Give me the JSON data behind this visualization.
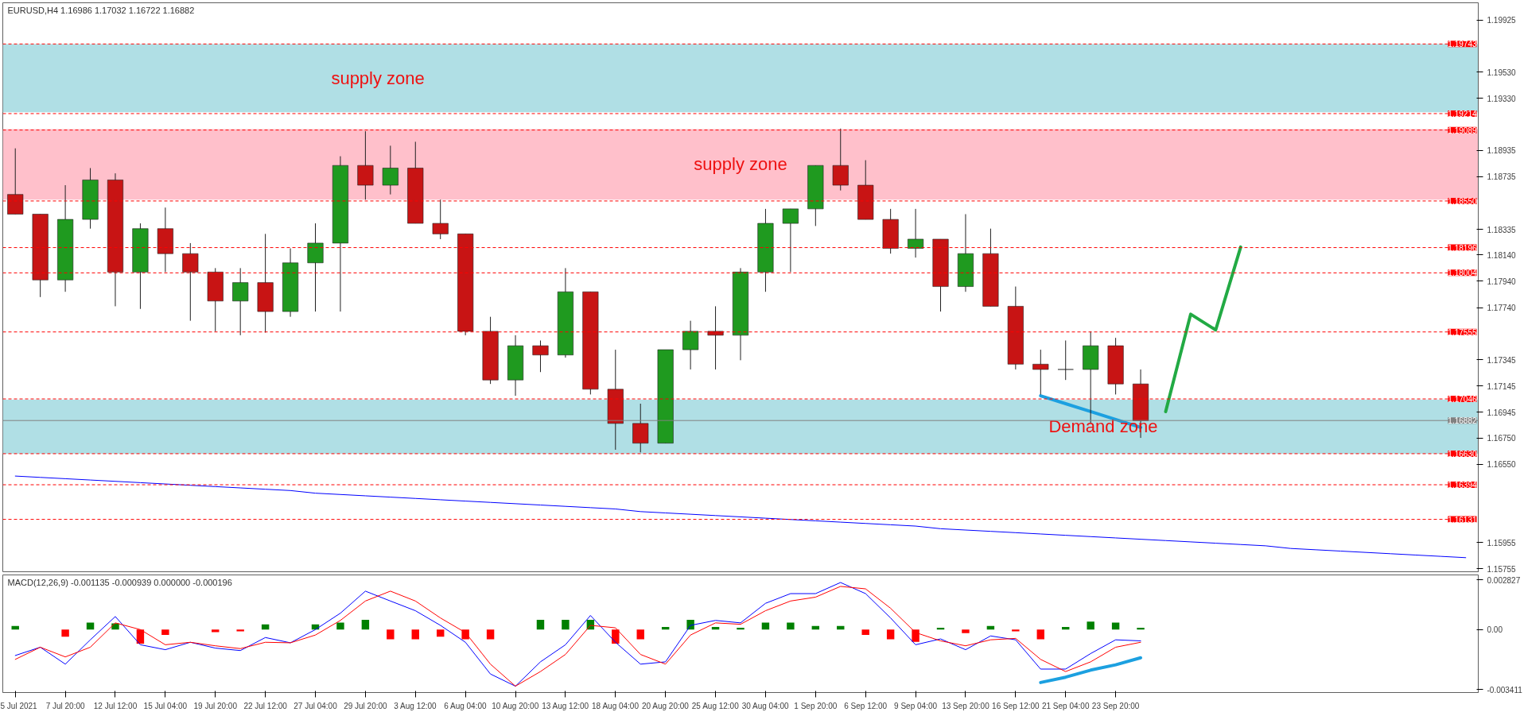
{
  "chart_data": [
    {
      "type": "candlestick",
      "title": "EURUSD,H4  1.16986 1.17032 1.16722 1.16882",
      "tick_labels": "y",
      "ylim": [
        1.15727,
        1.20056
      ],
      "yticks": [
        {
          "value": 1.19925,
          "label": "1.19925"
        },
        {
          "value": 1.1953,
          "label": "1.19530"
        },
        {
          "value": 1.1933,
          "label": "1.19330"
        },
        {
          "value": 1.18935,
          "label": "1.18935"
        },
        {
          "value": 1.18735,
          "label": "1.18735"
        },
        {
          "value": 1.18335,
          "label": "1.18335"
        },
        {
          "value": 1.1814,
          "label": "1.18140"
        },
        {
          "value": 1.1794,
          "label": "1.17940"
        },
        {
          "value": 1.1774,
          "label": "1.17740"
        },
        {
          "value": 1.17345,
          "label": "1.17345"
        },
        {
          "value": 1.17145,
          "label": "1.17145"
        },
        {
          "value": 1.16945,
          "label": "1.16945"
        },
        {
          "value": 1.1675,
          "label": "1.16750"
        },
        {
          "value": 1.1655,
          "label": "1.16550"
        },
        {
          "value": 1.15955,
          "label": "1.15955"
        },
        {
          "value": 1.15755,
          "label": "1.15755"
        }
      ],
      "categories": [
        null,
        null,
        null,
        null,
        null,
        null,
        null,
        null,
        null,
        null,
        null,
        null,
        null,
        null,
        null,
        null,
        null,
        null,
        null,
        null,
        null,
        null,
        null,
        null,
        null,
        null,
        null,
        null,
        null,
        null,
        null,
        null,
        null,
        null,
        null,
        null,
        null,
        null,
        null,
        null,
        null,
        null,
        null,
        null,
        null,
        null,
        null,
        null,
        null,
        null,
        null,
        null,
        null,
        null,
        null,
        null,
        null,
        null,
        null
      ],
      "ohlc": [
        [
          1.186,
          1.1895,
          1.1845,
          1.1845
        ],
        [
          1.1845,
          1.1845,
          1.1782,
          1.1795
        ],
        [
          1.1795,
          1.1867,
          1.1786,
          1.1841
        ],
        [
          1.1841,
          1.188,
          1.1834,
          1.1871
        ],
        [
          1.1871,
          1.1876,
          1.1775,
          1.1801
        ],
        [
          1.1801,
          1.1838,
          1.1773,
          1.1834
        ],
        [
          1.1834,
          1.185,
          1.1801,
          1.1815
        ],
        [
          1.1815,
          1.1823,
          1.1764,
          1.1801
        ],
        [
          1.1801,
          1.1804,
          1.1756,
          1.1779
        ],
        [
          1.1779,
          1.1804,
          1.1753,
          1.1793
        ],
        [
          1.1793,
          1.183,
          1.1755,
          1.1771
        ],
        [
          1.1771,
          1.1819,
          1.1767,
          1.1808
        ],
        [
          1.1808,
          1.1838,
          1.1771,
          1.1823
        ],
        [
          1.1823,
          1.1889,
          1.1771,
          1.1882
        ],
        [
          1.1882,
          1.1908,
          1.1856,
          1.1867
        ],
        [
          1.1867,
          1.1897,
          1.186,
          1.188
        ],
        [
          1.188,
          1.19,
          1.1838,
          1.1838
        ],
        [
          1.1838,
          1.1856,
          1.1826,
          1.183
        ],
        [
          1.183,
          1.183,
          1.1753,
          1.1756
        ],
        [
          1.1756,
          1.1767,
          1.1716,
          1.1719
        ],
        [
          1.1719,
          1.1753,
          1.1707,
          1.1745
        ],
        [
          1.1745,
          1.1749,
          1.1725,
          1.1738
        ],
        [
          1.1738,
          1.1804,
          1.1736,
          1.1786
        ],
        [
          1.1786,
          1.1786,
          1.1708,
          1.1712
        ],
        [
          1.1712,
          1.1742,
          1.1666,
          1.1686
        ],
        [
          1.1686,
          1.1701,
          1.1664,
          1.1671
        ],
        [
          1.1671,
          1.1742,
          1.1671,
          1.1742
        ],
        [
          1.1742,
          1.1764,
          1.1727,
          1.1756
        ],
        [
          1.1756,
          1.1775,
          1.1727,
          1.1753
        ],
        [
          1.1753,
          1.1804,
          1.1734,
          1.1801
        ],
        [
          1.1801,
          1.1849,
          1.1786,
          1.1838
        ],
        [
          1.1838,
          1.1849,
          1.1801,
          1.1849
        ],
        [
          1.1849,
          1.1882,
          1.1836,
          1.1882
        ],
        [
          1.1882,
          1.191,
          1.1863,
          1.1867
        ],
        [
          1.1867,
          1.1886,
          1.1841,
          1.1841
        ],
        [
          1.1841,
          1.1849,
          1.1815,
          1.1819
        ],
        [
          1.1819,
          1.1849,
          1.1812,
          1.1826
        ],
        [
          1.1826,
          1.1826,
          1.1771,
          1.179
        ],
        [
          1.179,
          1.1845,
          1.1786,
          1.1815
        ],
        [
          1.1815,
          1.1834,
          1.1775,
          1.1775
        ],
        [
          1.1775,
          1.179,
          1.1727,
          1.1731
        ],
        [
          1.1731,
          1.1742,
          1.1708,
          1.1727
        ],
        [
          1.1727,
          1.1749,
          1.1719,
          1.1727
        ],
        [
          1.1727,
          1.1756,
          1.1686,
          1.1745
        ],
        [
          1.1745,
          1.1751,
          1.1708,
          1.1716
        ],
        [
          1.1716,
          1.1727,
          1.1675,
          1.1688
        ],
        null,
        null,
        null,
        null,
        null,
        null,
        null,
        null,
        null,
        null,
        null,
        null,
        null
      ],
      "series": [
        {
          "type": "line",
          "color": "#22aa44",
          "values": [
            null,
            null,
            null,
            null,
            null,
            null,
            null,
            null,
            null,
            null,
            null,
            null,
            null,
            null,
            null,
            null,
            null,
            null,
            null,
            null,
            null,
            null,
            null,
            null,
            null,
            null,
            null,
            null,
            null,
            null,
            null,
            null,
            null,
            null,
            null,
            null,
            null,
            null,
            null,
            null,
            null,
            null,
            null,
            null,
            null,
            null,
            1.1695,
            1.1769,
            1.1757,
            1.182,
            null,
            null,
            null,
            null,
            null,
            null,
            null,
            null,
            null
          ]
        },
        {
          "type": "line",
          "color": "#0000ff",
          "values": [
            1.1646,
            1.1645,
            1.1644,
            1.1643,
            1.1642,
            1.1641,
            1.164,
            1.1639,
            1.1638,
            1.1637,
            1.1636,
            1.1635,
            1.1633,
            1.1632,
            1.1631,
            1.163,
            1.1629,
            1.1628,
            1.1627,
            1.1626,
            1.1625,
            1.1624,
            1.1623,
            1.1622,
            1.1621,
            1.1619,
            1.1618,
            1.1617,
            1.1616,
            1.1615,
            1.1614,
            1.1613,
            1.1612,
            1.1611,
            1.161,
            1.1609,
            1.1608,
            1.1606,
            1.1605,
            1.1604,
            1.1603,
            1.1602,
            1.1601,
            1.16,
            1.1599,
            1.1598,
            1.1597,
            1.1596,
            1.1595,
            1.1594,
            1.1593,
            1.1591,
            1.159,
            1.1589,
            1.1588,
            1.1587,
            1.1586,
            1.1585,
            1.1584
          ]
        },
        {
          "type": "line",
          "color": "#1ca0e0",
          "values": [
            null,
            null,
            null,
            null,
            null,
            null,
            null,
            null,
            null,
            null,
            null,
            null,
            null,
            null,
            null,
            null,
            null,
            null,
            null,
            null,
            null,
            null,
            null,
            null,
            null,
            null,
            null,
            null,
            null,
            null,
            null,
            null,
            null,
            null,
            null,
            null,
            null,
            null,
            null,
            null,
            null,
            1.1707,
            1.1701,
            1.1695,
            1.1689,
            1.1683,
            null,
            null,
            null,
            null,
            null,
            null,
            null,
            null,
            null,
            null,
            null,
            null,
            null
          ]
        }
      ],
      "ref_lines": [
        {
          "axis": "y",
          "value": 1.19743,
          "label": "1.19743",
          "color": "#ff0000",
          "line_style": "dashed"
        },
        {
          "axis": "y",
          "value": 1.19214,
          "label": "1.19214",
          "color": "#ff0000",
          "line_style": "dashed"
        },
        {
          "axis": "y",
          "value": 1.19089,
          "label": "1.19089",
          "color": "#ff0000",
          "line_style": "dashed"
        },
        {
          "axis": "y",
          "value": 1.1855,
          "label": "1.18550",
          "color": "#ff0000",
          "line_style": "dashed"
        },
        {
          "axis": "y",
          "value": 1.18196,
          "label": "1.18196",
          "color": "#ff0000",
          "line_style": "dashed"
        },
        {
          "axis": "y",
          "value": 1.18004,
          "label": "1.18004",
          "color": "#ff0000",
          "line_style": "dashed"
        },
        {
          "axis": "y",
          "value": 1.17555,
          "label": "1.17555",
          "color": "#ff0000",
          "line_style": "dashed"
        },
        {
          "axis": "y",
          "value": 1.17046,
          "label": "1.17046",
          "color": "#ff0000",
          "line_style": "dashed"
        },
        {
          "axis": "y",
          "value": 1.16882,
          "label": "1.16882",
          "color": "#808080",
          "line_style": "solid"
        },
        {
          "axis": "y",
          "value": 1.1663,
          "label": "1.16630",
          "color": "#ff0000",
          "line_style": "dashed"
        },
        {
          "axis": "y",
          "value": 1.16394,
          "label": "1.16394",
          "color": "#ff0000",
          "line_style": "dashed"
        },
        {
          "axis": "y",
          "value": 1.16131,
          "label": "1.16131",
          "color": "#ff0000",
          "line_style": "dashed"
        }
      ],
      "bands": [
        {
          "axis": "y",
          "from": 1.19225,
          "to": 1.19742,
          "label": "supply zone",
          "color": "#b0dfe5"
        },
        {
          "axis": "y",
          "from": 1.1856,
          "to": 1.19096,
          "label": "supply zone",
          "color": "#ffc0cb"
        },
        {
          "axis": "y",
          "from": 1.1663,
          "to": 1.1704,
          "label": "Demand zone",
          "color": "#b0dfe5"
        }
      ]
    },
    {
      "type": "line",
      "title": "MACD(12,26,9) -0.001135 -0.000939 0.000000 -0.000196",
      "ylim": [
        -0.00357,
        0.0031
      ],
      "yticks": [
        {
          "value": 0.002827,
          "label": "0.002827"
        },
        {
          "value": 0,
          "label": "0.00"
        },
        {
          "value": -0.003411,
          "label": "-0.003411"
        }
      ],
      "categories": [
        "5 Jul 2021",
        null,
        "7 Jul 20:00",
        null,
        "12 Jul 12:00",
        null,
        "15 Jul 04:00",
        null,
        "19 Jul 20:00",
        null,
        "22 Jul 12:00",
        null,
        "27 Jul 04:00",
        null,
        "29 Jul 20:00",
        null,
        "3 Aug 12:00",
        null,
        "6 Aug 04:00",
        null,
        "10 Aug 20:00",
        null,
        "13 Aug 12:00",
        null,
        "18 Aug 04:00",
        null,
        "20 Aug 20:00",
        null,
        "25 Aug 12:00",
        null,
        "30 Aug 04:00",
        null,
        "1 Sep 20:00",
        null,
        "6 Sep 12:00",
        null,
        "9 Sep 04:00",
        null,
        "13 Sep 20:00",
        null,
        "16 Sep 12:00",
        null,
        "21 Sep 04:00",
        null,
        "23 Sep 20:00",
        null,
        null,
        null,
        null,
        null,
        null,
        null,
        null,
        null,
        null,
        null,
        null,
        null,
        null
      ],
      "series": [
        {
          "type": "bar",
          "colors": [
            "#008000",
            "#008000",
            "#ff0000",
            "#008000",
            "#008000",
            "#ff0000",
            "#ff0000",
            "#008000",
            "#ff0000",
            "#ff0000",
            "#008000",
            "#008000",
            "#008000",
            "#008000",
            "#008000",
            "#ff0000",
            "#ff0000",
            "#ff0000",
            "#ff0000",
            "#ff0000",
            "#008000",
            "#008000",
            "#008000",
            "#008000",
            "#ff0000",
            "#ff0000",
            "#008000",
            "#008000",
            "#008000",
            "#008000",
            "#008000",
            "#008000",
            "#008000",
            "#008000",
            "#ff0000",
            "#ff0000",
            "#ff0000",
            "#008000",
            "#ff0000",
            "#008000",
            "#ff0000",
            "#ff0000",
            "#008000",
            "#008000",
            "#008000",
            "#008000",
            null,
            null,
            null,
            null,
            null,
            null,
            null,
            null,
            null,
            null,
            null,
            null,
            null
          ],
          "values": [
            0.0002,
            0.0,
            -0.0004,
            0.0004,
            0.00035,
            -0.0008,
            -0.0003,
            0.0,
            -0.00015,
            -0.0001,
            0.0003,
            0.0,
            0.0003,
            0.0004,
            0.00055,
            -0.00055,
            -0.00055,
            -0.0004,
            -0.00055,
            -0.00055,
            0.0,
            0.00055,
            0.00055,
            0.00055,
            -0.0008,
            -0.00055,
            0.00015,
            0.00055,
            0.00015,
            0.0001,
            0.0004,
            0.0004,
            0.0002,
            0.0002,
            -0.0003,
            -0.00055,
            -0.0007,
            0.0001,
            -0.0002,
            0.0002,
            -0.0001,
            -0.00055,
            0.00015,
            0.00045,
            0.0004,
            0.0001,
            null,
            null,
            null,
            null,
            null,
            null,
            null,
            null,
            null,
            null,
            null,
            null,
            null
          ]
        },
        {
          "type": "line",
          "color": "#0000ff",
          "values": [
            -0.00147,
            -0.001,
            -0.00196,
            -0.00058,
            0.00074,
            -0.00086,
            -0.00114,
            -0.00072,
            -0.00105,
            -0.00119,
            -0.00045,
            -0.00075,
            0.0,
            0.00093,
            0.00218,
            0.00162,
            0.00107,
            0.00024,
            -0.00072,
            -0.00252,
            -0.00321,
            -0.00183,
            -0.00086,
            0.0008,
            -0.00072,
            -0.00196,
            -0.00183,
            0.00024,
            0.00052,
            0.00038,
            0.00149,
            0.00204,
            0.00204,
            0.00267,
            0.00204,
            0.00066,
            -0.00086,
            -0.00053,
            -0.00114,
            -0.00036,
            -0.00058,
            -0.00224,
            -0.00224,
            -0.00136,
            -0.00058,
            -0.00064,
            null,
            null,
            null,
            null,
            null,
            null,
            null,
            null,
            null,
            null,
            null,
            null,
            null
          ]
        },
        {
          "type": "line",
          "color": "#ff0000",
          "values": [
            -0.00169,
            -0.001,
            -0.00155,
            -0.001,
            0.00038,
            0.0,
            -0.00086,
            -0.00072,
            -0.00092,
            -0.00108,
            -0.00072,
            -0.00075,
            -0.00031,
            0.00052,
            0.00162,
            0.00218,
            0.00162,
            0.00066,
            -0.00017,
            -0.00196,
            -0.00321,
            -0.00238,
            -0.00141,
            0.00024,
            0.0001,
            -0.00141,
            -0.00196,
            -0.00031,
            0.00038,
            0.0003,
            0.00107,
            0.00162,
            0.00184,
            0.00245,
            0.00231,
            0.00121,
            -0.00017,
            -0.00064,
            -0.00092,
            -0.00058,
            -0.0005,
            -0.00169,
            -0.00238,
            -0.00183,
            -0.001,
            -0.00072,
            null,
            null,
            null,
            null,
            null,
            null,
            null,
            null,
            null,
            null,
            null,
            null,
            null
          ]
        },
        {
          "type": "line",
          "color": "#1ca0e0",
          "values": [
            null,
            null,
            null,
            null,
            null,
            null,
            null,
            null,
            null,
            null,
            null,
            null,
            null,
            null,
            null,
            null,
            null,
            null,
            null,
            null,
            null,
            null,
            null,
            null,
            null,
            null,
            null,
            null,
            null,
            null,
            null,
            null,
            null,
            null,
            null,
            null,
            null,
            null,
            null,
            null,
            null,
            -0.003,
            -0.0027,
            -0.0023,
            -0.002,
            -0.0016,
            null,
            null,
            null,
            null,
            null,
            null,
            null,
            null,
            null,
            null,
            null,
            null,
            null
          ]
        }
      ]
    }
  ]
}
